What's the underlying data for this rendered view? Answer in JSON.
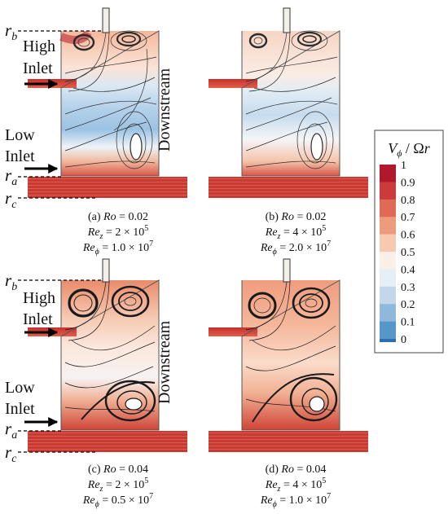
{
  "panels": [
    {
      "id": "a",
      "caption": [
        "(a) Ro = 0.02",
        "Re_z = 2 × 10^5",
        "Re_φ = 1.0 × 10^7"
      ]
    },
    {
      "id": "b",
      "caption": [
        "(b) Ro = 0.02",
        "Re_z = 4 × 10^5",
        "Re_φ = 2.0 × 10^7"
      ]
    },
    {
      "id": "c",
      "caption": [
        "(c) Ro = 0.04",
        "Re_z = 2 × 10^5",
        "Re_φ = 0.5 × 10^7"
      ]
    },
    {
      "id": "d",
      "caption": [
        "(d) Ro = 0.04",
        "Re_z = 4 × 10^5",
        "Re_φ = 1.0 × 10^7"
      ]
    }
  ],
  "labels": {
    "r_b": "r_b",
    "r_a": "r_a",
    "r_c": "r_c",
    "high": "High",
    "inlet": "Inlet",
    "low": "Low",
    "downstream": "Downstream"
  },
  "colorbar": {
    "title": "V_φ / Ωr",
    "ticks": [
      "1",
      "0.9",
      "0.8",
      "0.7",
      "0.6",
      "0.5",
      "0.4",
      "0.3",
      "0.2",
      "0.1",
      "0"
    ],
    "colors": [
      "#b2182b",
      "#cb3b3b",
      "#e06a55",
      "#ee9a7c",
      "#f8c9b1",
      "#f8efe8",
      "#e6eef6",
      "#c2d8ea",
      "#8fb9dc",
      "#5796c8",
      "#2c6fb1"
    ]
  }
}
